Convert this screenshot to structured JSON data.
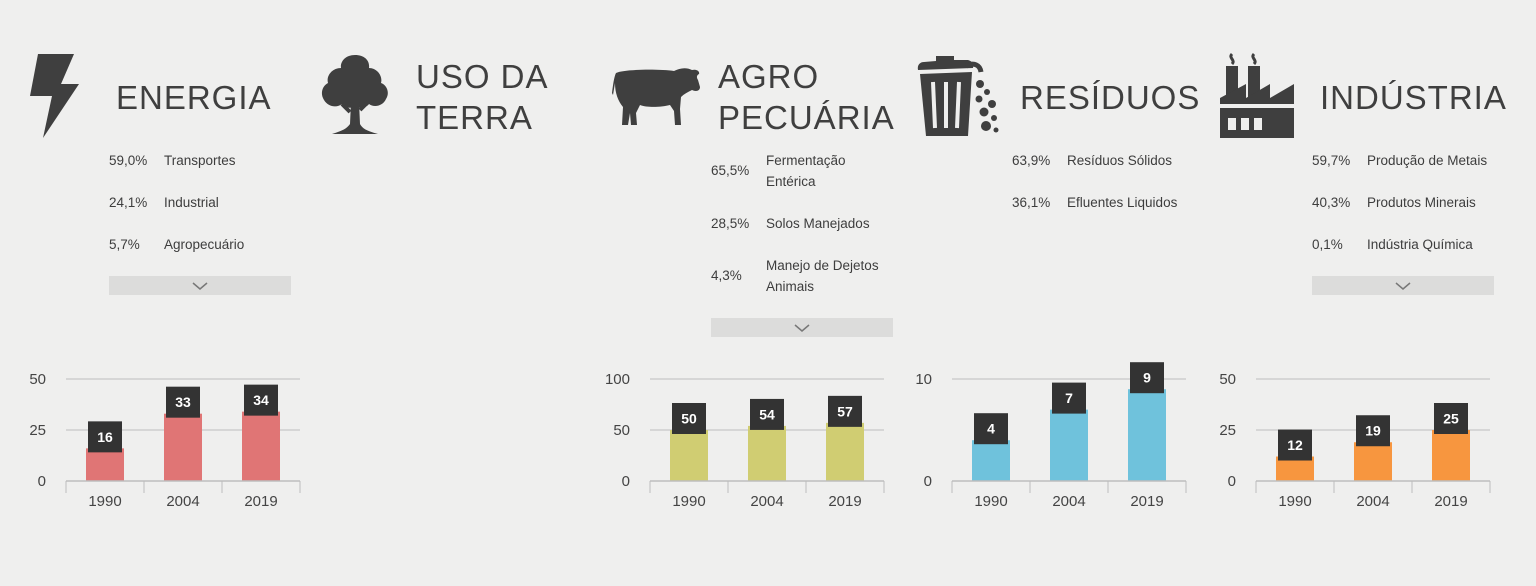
{
  "sectors": [
    {
      "key": "energia",
      "icon": "lightning-icon",
      "title": [
        "ENERGIA"
      ],
      "breakdown": [
        {
          "pct": "59,0%",
          "label": "Transportes"
        },
        {
          "pct": "24,1%",
          "label": "Industrial"
        },
        {
          "pct": "5,7%",
          "label": "Agropecuário"
        }
      ],
      "has_more": true
    },
    {
      "key": "uso-da-terra",
      "icon": "tree-icon",
      "title": [
        "USO DA",
        "TERRA"
      ],
      "breakdown": [],
      "has_more": false
    },
    {
      "key": "agropecuaria",
      "icon": "cow-icon",
      "title": [
        "AGRO",
        "PECUÁRIA"
      ],
      "breakdown": [
        {
          "pct": "65,5%",
          "label": "Fermentação Entérica"
        },
        {
          "pct": "28,5%",
          "label": "Solos Manejados"
        },
        {
          "pct": "4,3%",
          "label": "Manejo de Dejetos Animais"
        }
      ],
      "has_more": true
    },
    {
      "key": "residuos",
      "icon": "trash-can-icon",
      "title": [
        "RESÍDUOS"
      ],
      "breakdown": [
        {
          "pct": "63,9%",
          "label": "Resíduos Sólidos"
        },
        {
          "pct": "36,1%",
          "label": "Efluentes Liquidos"
        }
      ],
      "has_more": false
    },
    {
      "key": "industria",
      "icon": "factory-icon",
      "title": [
        "INDÚSTRIA"
      ],
      "breakdown": [
        {
          "pct": "59,7%",
          "label": "Produção de Metais"
        },
        {
          "pct": "40,3%",
          "label": "Produtos Minerais"
        },
        {
          "pct": "0,1%",
          "label": "Indústria Química"
        }
      ],
      "has_more": true
    }
  ],
  "chart_data": [
    {
      "type": "bar",
      "sector": "energia",
      "categories": [
        "1990",
        "2004",
        "2019"
      ],
      "values": [
        16,
        33,
        34
      ],
      "yticks": [
        0,
        25,
        50
      ],
      "ylim": [
        0,
        50
      ],
      "color": "#e07575",
      "grid": true,
      "title": "",
      "xlabel": "",
      "ylabel": ""
    },
    {
      "type": "bar",
      "sector": "agropecuaria",
      "categories": [
        "1990",
        "2004",
        "2019"
      ],
      "values": [
        50,
        54,
        57
      ],
      "yticks": [
        0,
        50,
        100
      ],
      "ylim": [
        0,
        100
      ],
      "color": "#d0cd72",
      "grid": true,
      "title": "",
      "xlabel": "",
      "ylabel": ""
    },
    {
      "type": "bar",
      "sector": "residuos",
      "categories": [
        "1990",
        "2004",
        "2019"
      ],
      "values": [
        4,
        7,
        9
      ],
      "yticks": [
        0,
        10
      ],
      "ylim": [
        0,
        10
      ],
      "color": "#6fc2dc",
      "grid": true,
      "title": "",
      "xlabel": "",
      "ylabel": ""
    },
    {
      "type": "bar",
      "sector": "industria",
      "categories": [
        "1990",
        "2004",
        "2019"
      ],
      "values": [
        12,
        19,
        25
      ],
      "yticks": [
        0,
        25,
        50
      ],
      "ylim": [
        0,
        50
      ],
      "color": "#f7963f",
      "grid": true,
      "title": "",
      "xlabel": "",
      "ylabel": ""
    }
  ]
}
